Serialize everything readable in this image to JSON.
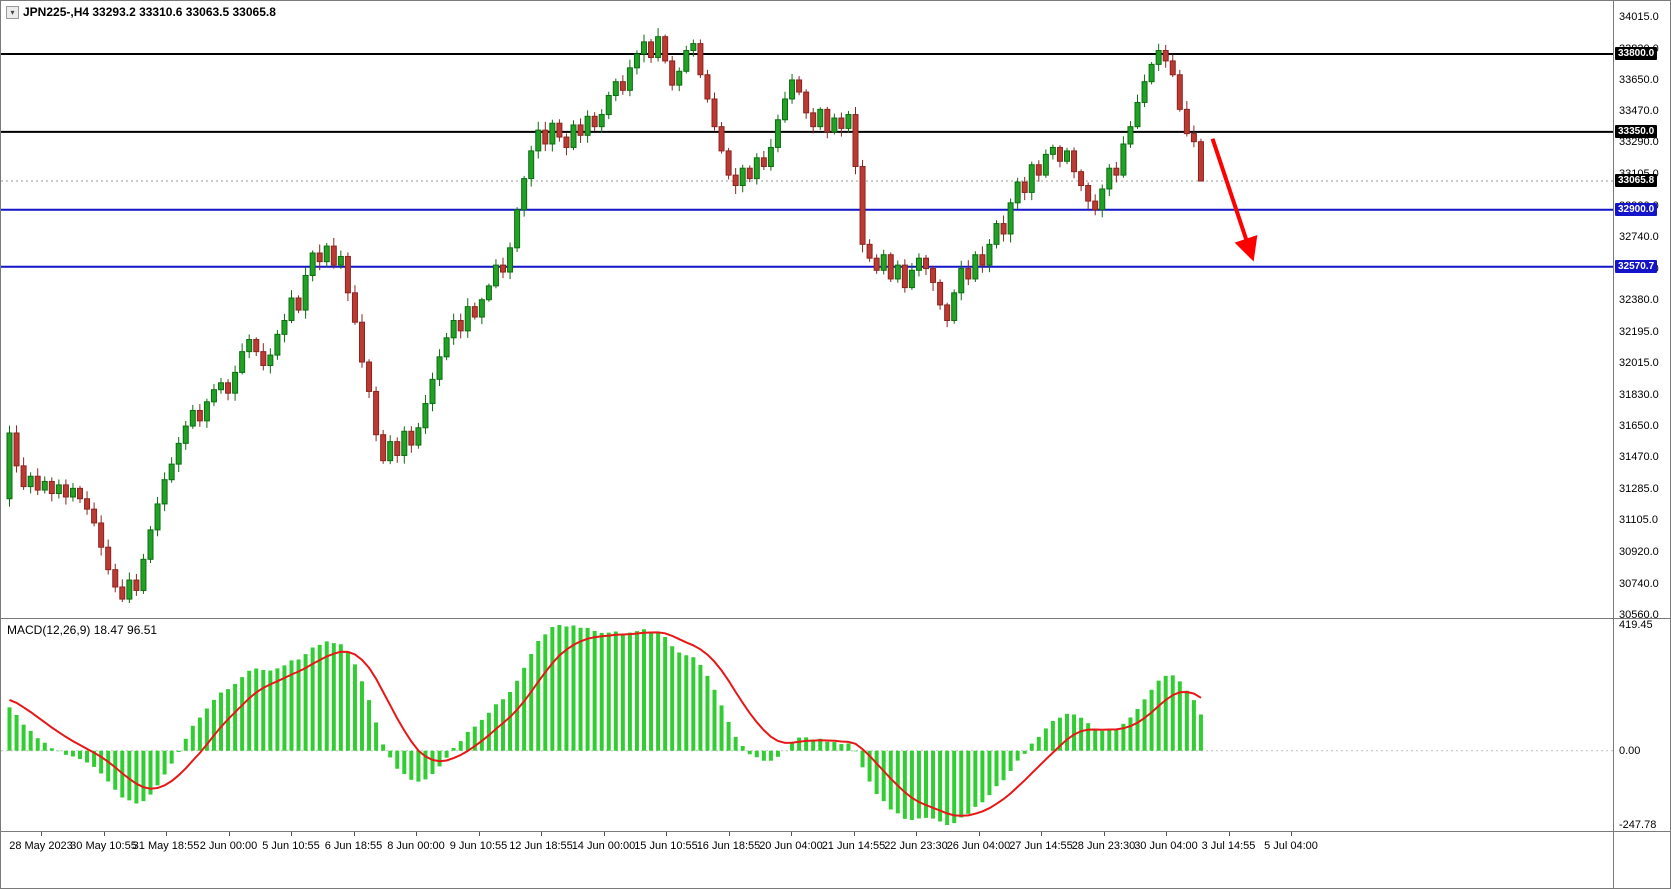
{
  "header": {
    "symbol": "JPN225-",
    "timeframe": "H4",
    "title": "JPN225-,H4  33293.2 33310.6 33063.5 33065.8",
    "ohlc": {
      "open": "33293.2",
      "high": "33310.6",
      "low": "33063.5",
      "close": "33065.8"
    },
    "menu_icon_glyph": "▾"
  },
  "chart_data": {
    "type": "candlestick",
    "title": "JPN225- H4 candlestick chart with support/resistance levels and MACD(12,26,9)",
    "price_axis": {
      "min": 30535,
      "max": 34060,
      "tick_labels": [
        "34015.0",
        "33830.0",
        "33650.0",
        "33470.0",
        "33290.0",
        "33105.0",
        "32920.0",
        "32740.0",
        "32560.0",
        "32380.0",
        "32195.0",
        "32015.0",
        "31830.0",
        "31650.0",
        "31470.0",
        "31285.0",
        "31105.0",
        "30920.0",
        "30740.0",
        "30560.0"
      ]
    },
    "time_axis": {
      "labels": [
        "28 May 2023",
        "30 May 10:55",
        "31 May 18:55",
        "2 Jun 00:00",
        "5 Jun 10:55",
        "6 Jun 18:55",
        "8 Jun 00:00",
        "9 Jun 10:55",
        "12 Jun 18:55",
        "14 Jun 00:00",
        "15 Jun 10:55",
        "16 Jun 18:55",
        "20 Jun 04:00",
        "21 Jun 14:55",
        "22 Jun 23:30",
        "26 Jun 04:00",
        "27 Jun 14:55",
        "28 Jun 23:30",
        "30 Jun 04:00",
        "3 Jul 14:55",
        "5 Jul 04:00"
      ]
    },
    "first_open": 31230,
    "closes": [
      31610,
      31420,
      31300,
      31360,
      31280,
      31330,
      31260,
      31310,
      31240,
      31290,
      31230,
      31170,
      31090,
      30950,
      30820,
      30720,
      30650,
      30760,
      30700,
      30880,
      31050,
      31200,
      31340,
      31430,
      31550,
      31650,
      31740,
      31680,
      31790,
      31860,
      31900,
      31840,
      31960,
      32080,
      32150,
      32080,
      32000,
      32060,
      32180,
      32260,
      32390,
      32320,
      32520,
      32650,
      32600,
      32690,
      32580,
      32630,
      32420,
      32250,
      32020,
      31850,
      31600,
      31450,
      31560,
      31480,
      31620,
      31540,
      31640,
      31780,
      31920,
      32050,
      32160,
      32260,
      32200,
      32340,
      32280,
      32380,
      32460,
      32580,
      32540,
      32680,
      32900,
      33080,
      33240,
      33360,
      33280,
      33400,
      33320,
      33260,
      33390,
      33330,
      33440,
      33380,
      33450,
      33560,
      33640,
      33590,
      33720,
      33800,
      33870,
      33780,
      33900,
      33760,
      33620,
      33700,
      33820,
      33860,
      33680,
      33540,
      33380,
      33240,
      33100,
      33040,
      33140,
      33080,
      33200,
      33150,
      33260,
      33420,
      33540,
      33650,
      33580,
      33460,
      33380,
      33480,
      33350,
      33430,
      33370,
      33450,
      33150,
      32700,
      32620,
      32550,
      32640,
      32500,
      32580,
      32450,
      32550,
      32620,
      32560,
      32480,
      32350,
      32260,
      32420,
      32560,
      32500,
      32640,
      32580,
      32700,
      32820,
      32760,
      32940,
      33060,
      33000,
      33160,
      33100,
      33220,
      33260,
      33180,
      33240,
      33120,
      33040,
      32950,
      32900,
      33020,
      33140,
      33100,
      33280,
      33380,
      33520,
      33640,
      33740,
      33820,
      33760,
      33680,
      33480,
      33340,
      33293.2,
      33065.8
    ],
    "current_bar": {
      "open": 33293.2,
      "high": 33310.6,
      "low": 33063.5,
      "close": 33065.8
    },
    "levels": [
      {
        "price": 33800.0,
        "label": "33800.0",
        "color": "#000000",
        "width": 2,
        "role": "resistance"
      },
      {
        "price": 33350.0,
        "label": "33350.0",
        "color": "#000000",
        "width": 2,
        "role": "resistance"
      },
      {
        "price": 32900.0,
        "label": "32900.0",
        "color": "#1414c8",
        "width": 2,
        "role": "support"
      },
      {
        "price": 32570.7,
        "label": "32570.7",
        "color": "#1414c8",
        "width": 2,
        "role": "support"
      }
    ],
    "current_price": {
      "value": 33065.8,
      "label": "33065.8",
      "badge_color": "#000000",
      "line_color": "#9a9a9a"
    },
    "arrow": {
      "color": "#ff0000",
      "from": {
        "bar": 171,
        "price": 33310
      },
      "to": {
        "bar": 176.5,
        "price": 32640
      },
      "meaning": "projected decline toward support"
    },
    "indicator": {
      "name": "MACD(12,26,9)",
      "label": "MACD(12,26,9) 18.47 96.51",
      "value_main": "18.47",
      "value_signal": "96.51",
      "axis_labels": [
        "419.45",
        "0.00",
        "-247.78"
      ],
      "axis_max": 419.45,
      "axis_min": -247.78,
      "fast": 12,
      "slow": 26,
      "signal_period": 9,
      "histogram_color": "#32cd32",
      "signal_color": "#e81717"
    },
    "colors": {
      "bull_body": "#21a126",
      "bull_border": "#0c6e10",
      "bear_body": "#bb3a33",
      "bear_border": "#8c2420",
      "background": "#ffffff",
      "axis_text": "#000000"
    }
  }
}
